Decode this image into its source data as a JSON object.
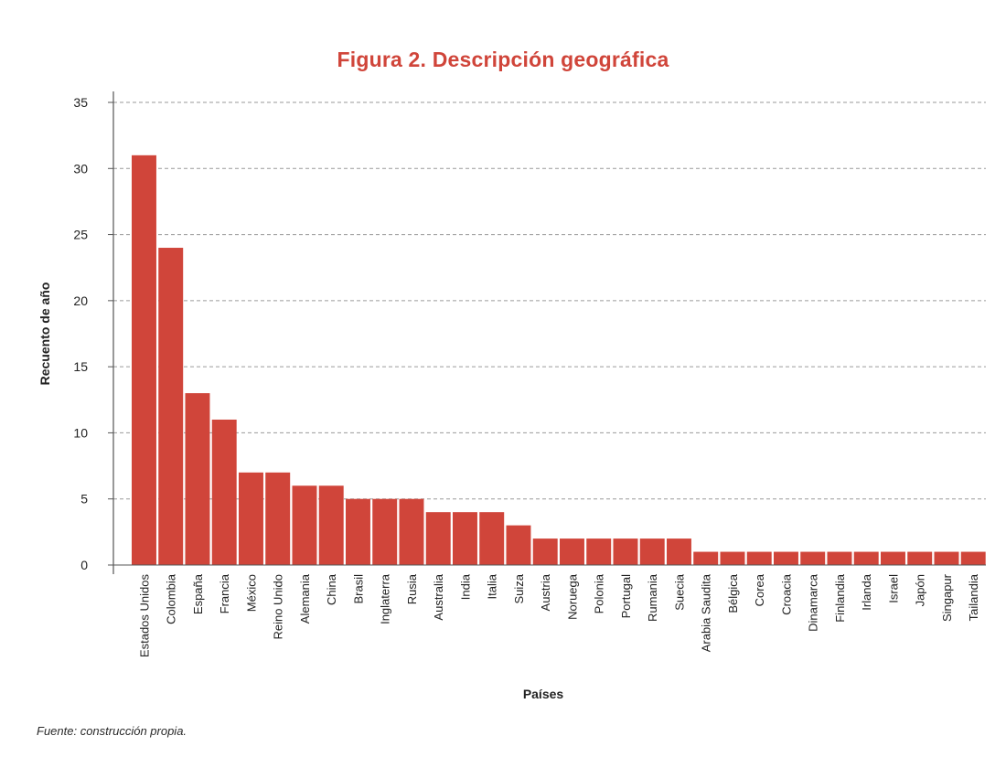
{
  "colors": {
    "bar": "#d0453a",
    "title": "#d0453a",
    "grid": "#9a9a9a",
    "axis": "#555555",
    "text": "#222222"
  },
  "chart_data": {
    "type": "bar",
    "title": "Figura 2. Descripción geográfica",
    "xlabel": "Países",
    "ylabel": "Recuento de año",
    "ylim": [
      0,
      35
    ],
    "yticks": [
      0,
      5,
      10,
      15,
      20,
      25,
      30,
      35
    ],
    "grid": true,
    "categories": [
      "Estados Unidos",
      "Colombia",
      "España",
      "Francia",
      "México",
      "Reino Unido",
      "Alemania",
      "China",
      "Brasil",
      "Inglaterra",
      "Rusia",
      "Australia",
      "India",
      "Italia",
      "Suiza",
      "Austria",
      "Noruega",
      "Polonia",
      "Portugal",
      "Rumania",
      "Suecia",
      "Arabia Saudita",
      "Bélgica",
      "Corea",
      "Croacia",
      "Dinamarca",
      "Finlandia",
      "Irlanda",
      "Israel",
      "Japón",
      "Singapur",
      "Tailandia"
    ],
    "values": [
      31,
      24,
      13,
      11,
      7,
      7,
      6,
      6,
      5,
      5,
      5,
      4,
      4,
      4,
      3,
      2,
      2,
      2,
      2,
      2,
      2,
      1,
      1,
      1,
      1,
      1,
      1,
      1,
      1,
      1,
      1,
      1
    ]
  },
  "footer": {
    "source": "Fuente: construcción propia."
  }
}
